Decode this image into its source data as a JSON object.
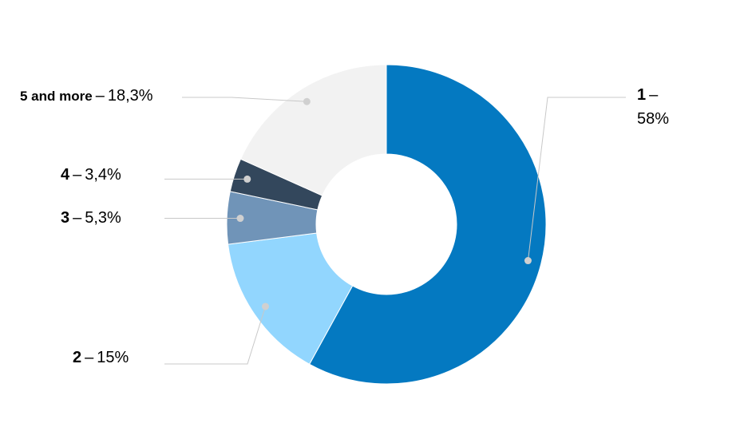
{
  "chart_data": {
    "type": "pie",
    "donut": true,
    "legend": "none",
    "slices": [
      {
        "category": "1",
        "value": 58,
        "value_label": "58%",
        "color": "#0479c1"
      },
      {
        "category": "2",
        "value": 15,
        "value_label": "15%",
        "color": "#92d6fe"
      },
      {
        "category": "3",
        "value": 5.3,
        "value_label": "5,3%",
        "color": "#7094b8"
      },
      {
        "category": "4",
        "value": 3.4,
        "value_label": "3,4%",
        "color": "#33475c"
      },
      {
        "category": "5 and more",
        "value": 18.3,
        "value_label": "18,3%",
        "color": "#f2f2f2"
      }
    ]
  }
}
